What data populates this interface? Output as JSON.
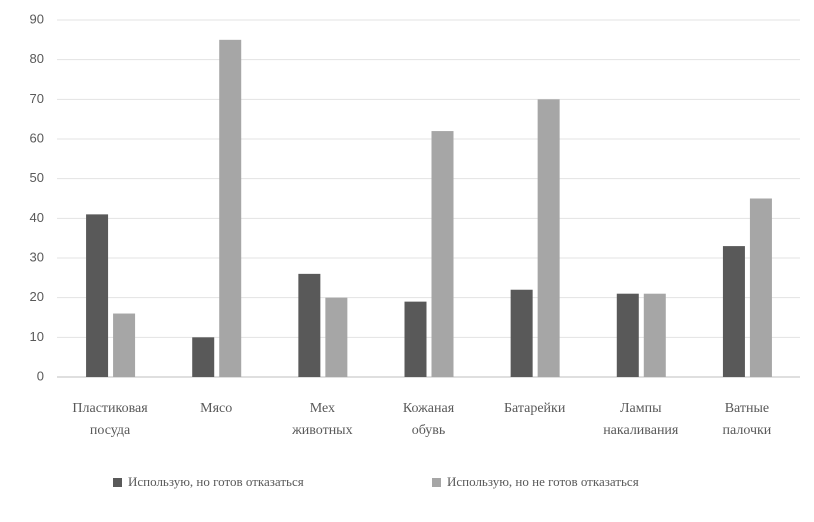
{
  "chart_data": {
    "type": "bar",
    "categories": [
      "Пластиковая\nпосуда",
      "Мясо",
      "Мех\nживотных",
      "Кожаная\nобувь",
      "Батарейки",
      "Лампы\nнакаливания",
      "Ватные\nпалочки"
    ],
    "series": [
      {
        "name": "Использую, но готов отказаться",
        "color": "#595959",
        "values": [
          41,
          10,
          26,
          19,
          22,
          21,
          33
        ]
      },
      {
        "name": "Использую, но не готов отказаться",
        "color": "#a6a6a6",
        "values": [
          16,
          85,
          20,
          62,
          70,
          21,
          45
        ]
      }
    ],
    "ylim": [
      0,
      90
    ],
    "yticks": [
      0,
      10,
      20,
      30,
      40,
      50,
      60,
      70,
      80,
      90
    ],
    "grid": true
  }
}
